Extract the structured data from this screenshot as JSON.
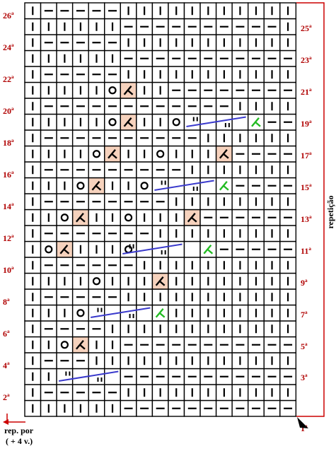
{
  "grid": {
    "cols": 17,
    "rows": [
      "|||||||||||||||||",
      "|------|||||||||||",
      "|||||||||||||||||",
      "|------|||||||||||",
      "|||||||||||||||||",
      "|----||||||||||||",
      "|||||||||||||||||",
      "|------|||||||||||",
      "|||||||||||||||||",
      "|------|||||||||||",
      "|||||||||||||||||",
      "|------|||||||||||",
      "|||||||||||||||||",
      "|------|||||||||||",
      "|||||||||||||||||",
      "|------|||||||||||",
      "|||||||||||||||||",
      "|------|||||||||||",
      "|||||||||||||||||",
      "|------|||||||||||",
      "|||||||||||||||||",
      "|------|||||||||||",
      "|||||||||||||||||",
      "|------|||||||||||",
      "|||||||||||||||||",
      "|------|||||||||||"
    ]
  },
  "labels_left": [
    "2ª",
    "4ª",
    "6ª",
    "8ª",
    "10ª",
    "12ª",
    "14ª",
    "16ª",
    "18ª",
    "20ª",
    "22ª",
    "24ª",
    "26ª"
  ],
  "labels_right": [
    "1ª",
    "3ª",
    "5ª",
    "7ª",
    "9ª",
    "11ª",
    "13ª",
    "15ª",
    "17ª",
    "19ª",
    "21ª",
    "23ª",
    "25ª"
  ],
  "side_label": "repetição",
  "bottom_label_1": "rep. por",
  "bottom_label_2": "( + 4 v.)",
  "colors": {
    "label": "#b00000",
    "bracket": "#cc0000",
    "highlight": "#f6d2bd",
    "cable": "#3a3acc",
    "green": "#22bb22"
  }
}
